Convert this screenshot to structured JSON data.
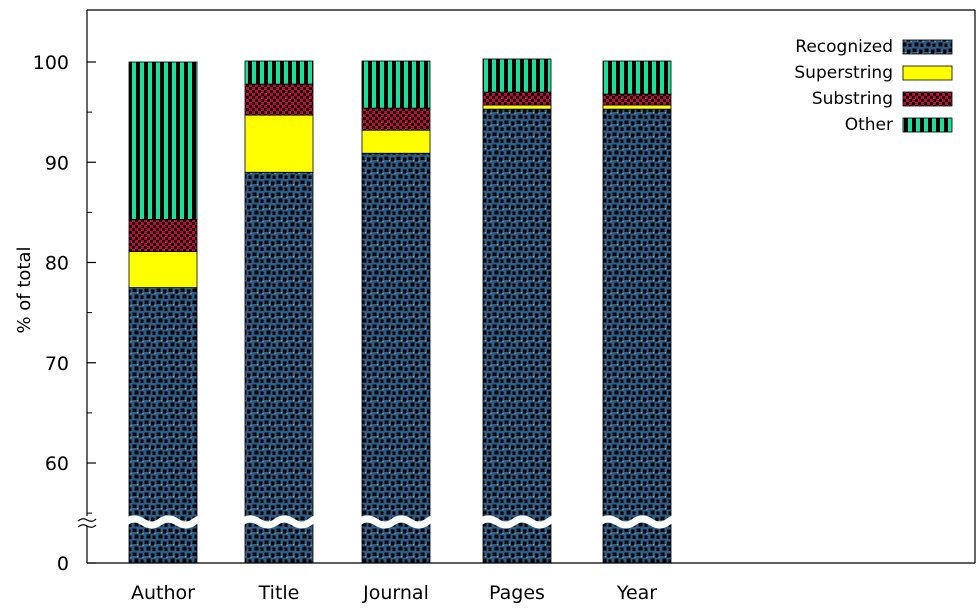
{
  "chart_data": {
    "type": "bar",
    "stacked": true,
    "broken_axis": true,
    "title": "",
    "xlabel": "",
    "ylabel": "% of total",
    "ylim": [
      0,
      100
    ],
    "axis_break_below": 54,
    "y_ticks": [
      0,
      60,
      70,
      80,
      90,
      100
    ],
    "y_tick_labels": [
      "0",
      "60",
      "70",
      "80",
      "90",
      "100"
    ],
    "categories": [
      "Author",
      "Title",
      "Journal",
      "Pages",
      "Year"
    ],
    "series": [
      {
        "name": "Recognized",
        "color": "#2e5d88",
        "pattern": "dots",
        "values": [
          77.5,
          89.0,
          90.9,
          95.3,
          95.3
        ]
      },
      {
        "name": "Superstring",
        "color": "#ffff00",
        "pattern": "solid",
        "values": [
          3.6,
          5.7,
          2.3,
          0.4,
          0.4
        ]
      },
      {
        "name": "Substring",
        "color": "#c8003c",
        "pattern": "checker",
        "values": [
          3.2,
          3.1,
          2.2,
          1.3,
          1.1
        ]
      },
      {
        "name": "Other",
        "color": "#19e09a",
        "pattern": "stripes",
        "values": [
          15.7,
          2.3,
          4.7,
          3.3,
          3.3
        ]
      }
    ],
    "legend_position": "top-right",
    "grid": false
  }
}
